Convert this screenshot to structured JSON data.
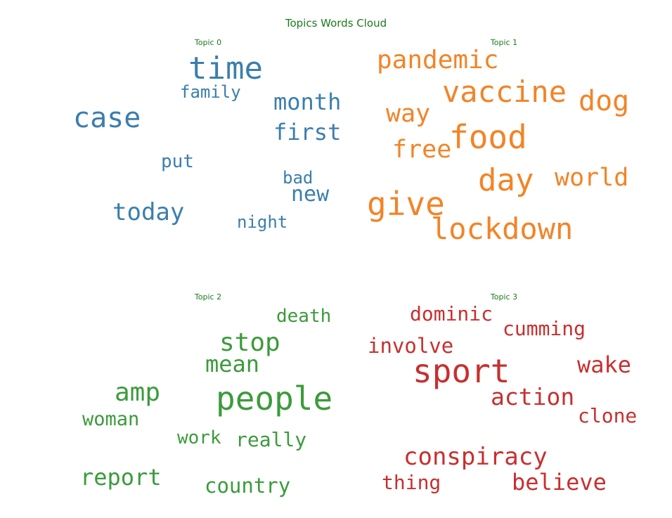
{
  "chart_data": {
    "type": "wordcloud",
    "title": "Topics Words Cloud",
    "colors": {
      "title": "#1d7a1d",
      "topic_0": "#3b7eae",
      "topic_1": "#f28427",
      "topic_2": "#3b9b3b",
      "topic_3": "#c7302f"
    },
    "topics": [
      {
        "name": "Topic 0",
        "words": [
          "time",
          "case",
          "family",
          "month",
          "first",
          "put",
          "today",
          "bad",
          "new",
          "night"
        ]
      },
      {
        "name": "Topic 1",
        "words": [
          "pandemic",
          "vaccine",
          "dog",
          "way",
          "food",
          "free",
          "day",
          "world",
          "give",
          "lockdown"
        ]
      },
      {
        "name": "Topic 2",
        "words": [
          "death",
          "stop",
          "mean",
          "amp",
          "people",
          "woman",
          "work",
          "really",
          "report",
          "country"
        ]
      },
      {
        "name": "Topic 3",
        "words": [
          "dominic",
          "cumming",
          "involve",
          "sport",
          "wake",
          "action",
          "clone",
          "conspiracy",
          "thing",
          "believe"
        ]
      }
    ]
  }
}
